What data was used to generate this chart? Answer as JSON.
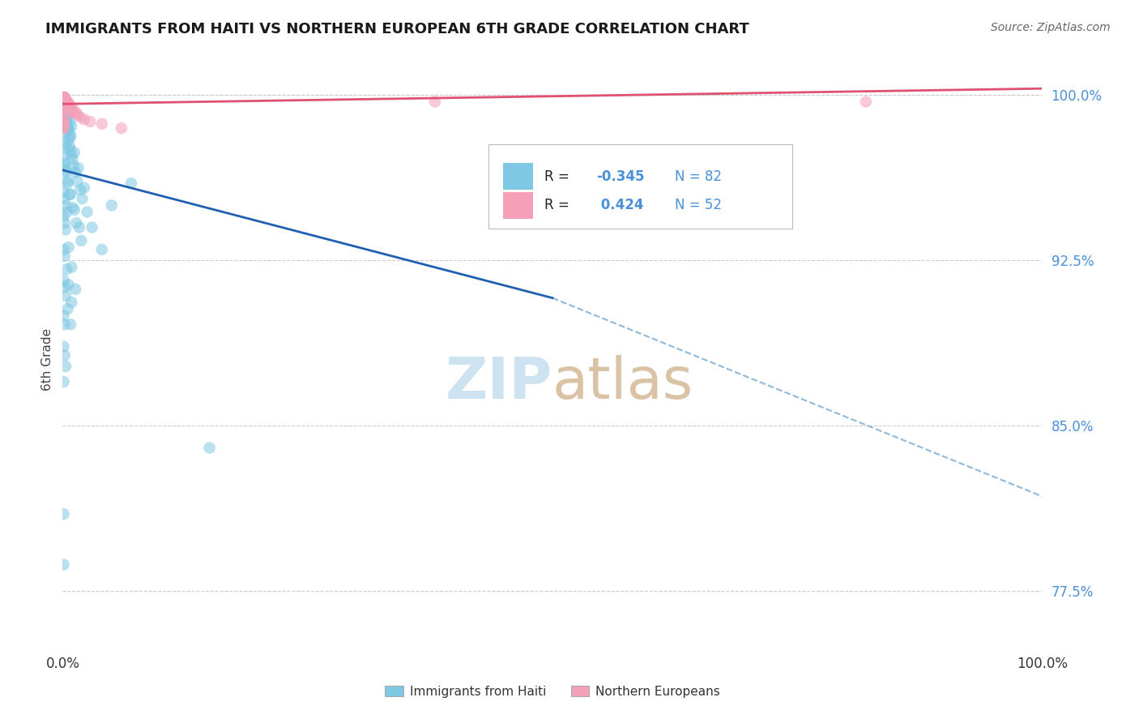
{
  "title": "IMMIGRANTS FROM HAITI VS NORTHERN EUROPEAN 6TH GRADE CORRELATION CHART",
  "source": "Source: ZipAtlas.com",
  "ylabel": "6th Grade",
  "xlim": [
    0.0,
    1.0
  ],
  "ylim": [
    0.748,
    1.012
  ],
  "yticks": [
    0.775,
    0.85,
    0.925,
    1.0
  ],
  "ytick_labels": [
    "77.5%",
    "85.0%",
    "92.5%",
    "100.0%"
  ],
  "xtick_labels": [
    "0.0%",
    "100.0%"
  ],
  "haiti_color": "#7ec8e3",
  "northern_color": "#f4a0b8",
  "haiti_line_color": "#2060b0",
  "northern_line_color": "#e05070",
  "dashed_line_color": "#90b8d8",
  "haiti_R": -0.345,
  "haiti_N": 82,
  "northern_R": 0.424,
  "northern_N": 52,
  "haiti_line_x0": 0.0,
  "haiti_line_y0": 0.966,
  "haiti_line_x1": 0.5,
  "haiti_line_y1": 0.908,
  "dashed_line_x0": 0.5,
  "dashed_line_y0": 0.908,
  "dashed_line_x1": 1.0,
  "dashed_line_y1": 0.818,
  "northern_line_x0": 0.0,
  "northern_line_y0": 0.996,
  "northern_line_x1": 1.0,
  "northern_line_y1": 1.003,
  "haiti_scatter_x": [
    0.002,
    0.003,
    0.004,
    0.005,
    0.006,
    0.008,
    0.003,
    0.005,
    0.007,
    0.009,
    0.002,
    0.004,
    0.003,
    0.006,
    0.007,
    0.008,
    0.009,
    0.01,
    0.011,
    0.013,
    0.015,
    0.018,
    0.02,
    0.025,
    0.03,
    0.04,
    0.05,
    0.07,
    0.002,
    0.003,
    0.004,
    0.006,
    0.008,
    0.012,
    0.016,
    0.022,
    0.002,
    0.003,
    0.005,
    0.007,
    0.01,
    0.014,
    0.019,
    0.001,
    0.002,
    0.003,
    0.005,
    0.008,
    0.012,
    0.017,
    0.001,
    0.002,
    0.003,
    0.004,
    0.001,
    0.002,
    0.003,
    0.006,
    0.009,
    0.013,
    0.001,
    0.002,
    0.004,
    0.006,
    0.009,
    0.001,
    0.002,
    0.003,
    0.005,
    0.008,
    0.001,
    0.002,
    0.001,
    0.002,
    0.003,
    0.001,
    0.001,
    0.001,
    0.15,
    0.001,
    0.001,
    0.001
  ],
  "haiti_scatter_y": [
    0.99,
    0.988,
    0.987,
    0.985,
    0.984,
    0.982,
    0.993,
    0.99,
    0.988,
    0.986,
    0.978,
    0.976,
    0.983,
    0.98,
    0.977,
    0.975,
    0.973,
    0.971,
    0.968,
    0.965,
    0.961,
    0.957,
    0.953,
    0.947,
    0.94,
    0.93,
    0.95,
    0.96,
    0.995,
    0.992,
    0.989,
    0.985,
    0.981,
    0.974,
    0.967,
    0.958,
    0.968,
    0.965,
    0.96,
    0.955,
    0.949,
    0.942,
    0.934,
    0.972,
    0.969,
    0.966,
    0.961,
    0.955,
    0.948,
    0.94,
    0.956,
    0.953,
    0.95,
    0.947,
    0.945,
    0.942,
    0.939,
    0.931,
    0.922,
    0.912,
    0.93,
    0.927,
    0.921,
    0.914,
    0.906,
    0.916,
    0.913,
    0.909,
    0.903,
    0.896,
    0.9,
    0.896,
    0.886,
    0.882,
    0.877,
    0.87,
    0.81,
    0.787,
    0.84,
    0.996,
    0.993,
    0.99
  ],
  "northern_scatter_x": [
    0.002,
    0.003,
    0.004,
    0.005,
    0.006,
    0.007,
    0.008,
    0.009,
    0.01,
    0.012,
    0.015,
    0.018,
    0.022,
    0.028,
    0.001,
    0.002,
    0.003,
    0.005,
    0.007,
    0.01,
    0.014,
    0.001,
    0.002,
    0.003,
    0.005,
    0.007,
    0.001,
    0.002,
    0.003,
    0.001,
    0.002,
    0.001,
    0.002,
    0.001,
    0.001,
    0.001,
    0.001,
    0.001,
    0.001,
    0.001,
    0.04,
    0.06,
    0.001,
    0.38,
    0.82,
    0.001,
    0.001,
    0.001,
    0.001,
    0.001,
    0.001,
    0.001
  ],
  "northern_scatter_y": [
    0.997,
    0.996,
    0.996,
    0.995,
    0.995,
    0.994,
    0.994,
    0.993,
    0.993,
    0.992,
    0.991,
    0.99,
    0.989,
    0.988,
    0.998,
    0.997,
    0.997,
    0.996,
    0.995,
    0.994,
    0.992,
    0.999,
    0.998,
    0.998,
    0.997,
    0.996,
    0.999,
    0.999,
    0.998,
    0.999,
    0.999,
    0.998,
    0.998,
    0.998,
    0.997,
    0.997,
    0.996,
    0.995,
    0.994,
    0.993,
    0.987,
    0.985,
    0.997,
    0.997,
    0.997,
    0.99,
    0.989,
    0.988,
    0.987,
    0.986,
    0.985,
    0.985
  ],
  "watermark_zip_color": "#c5dff0",
  "watermark_atlas_color": "#d4b896",
  "background_color": "#ffffff",
  "grid_color": "#cccccc"
}
